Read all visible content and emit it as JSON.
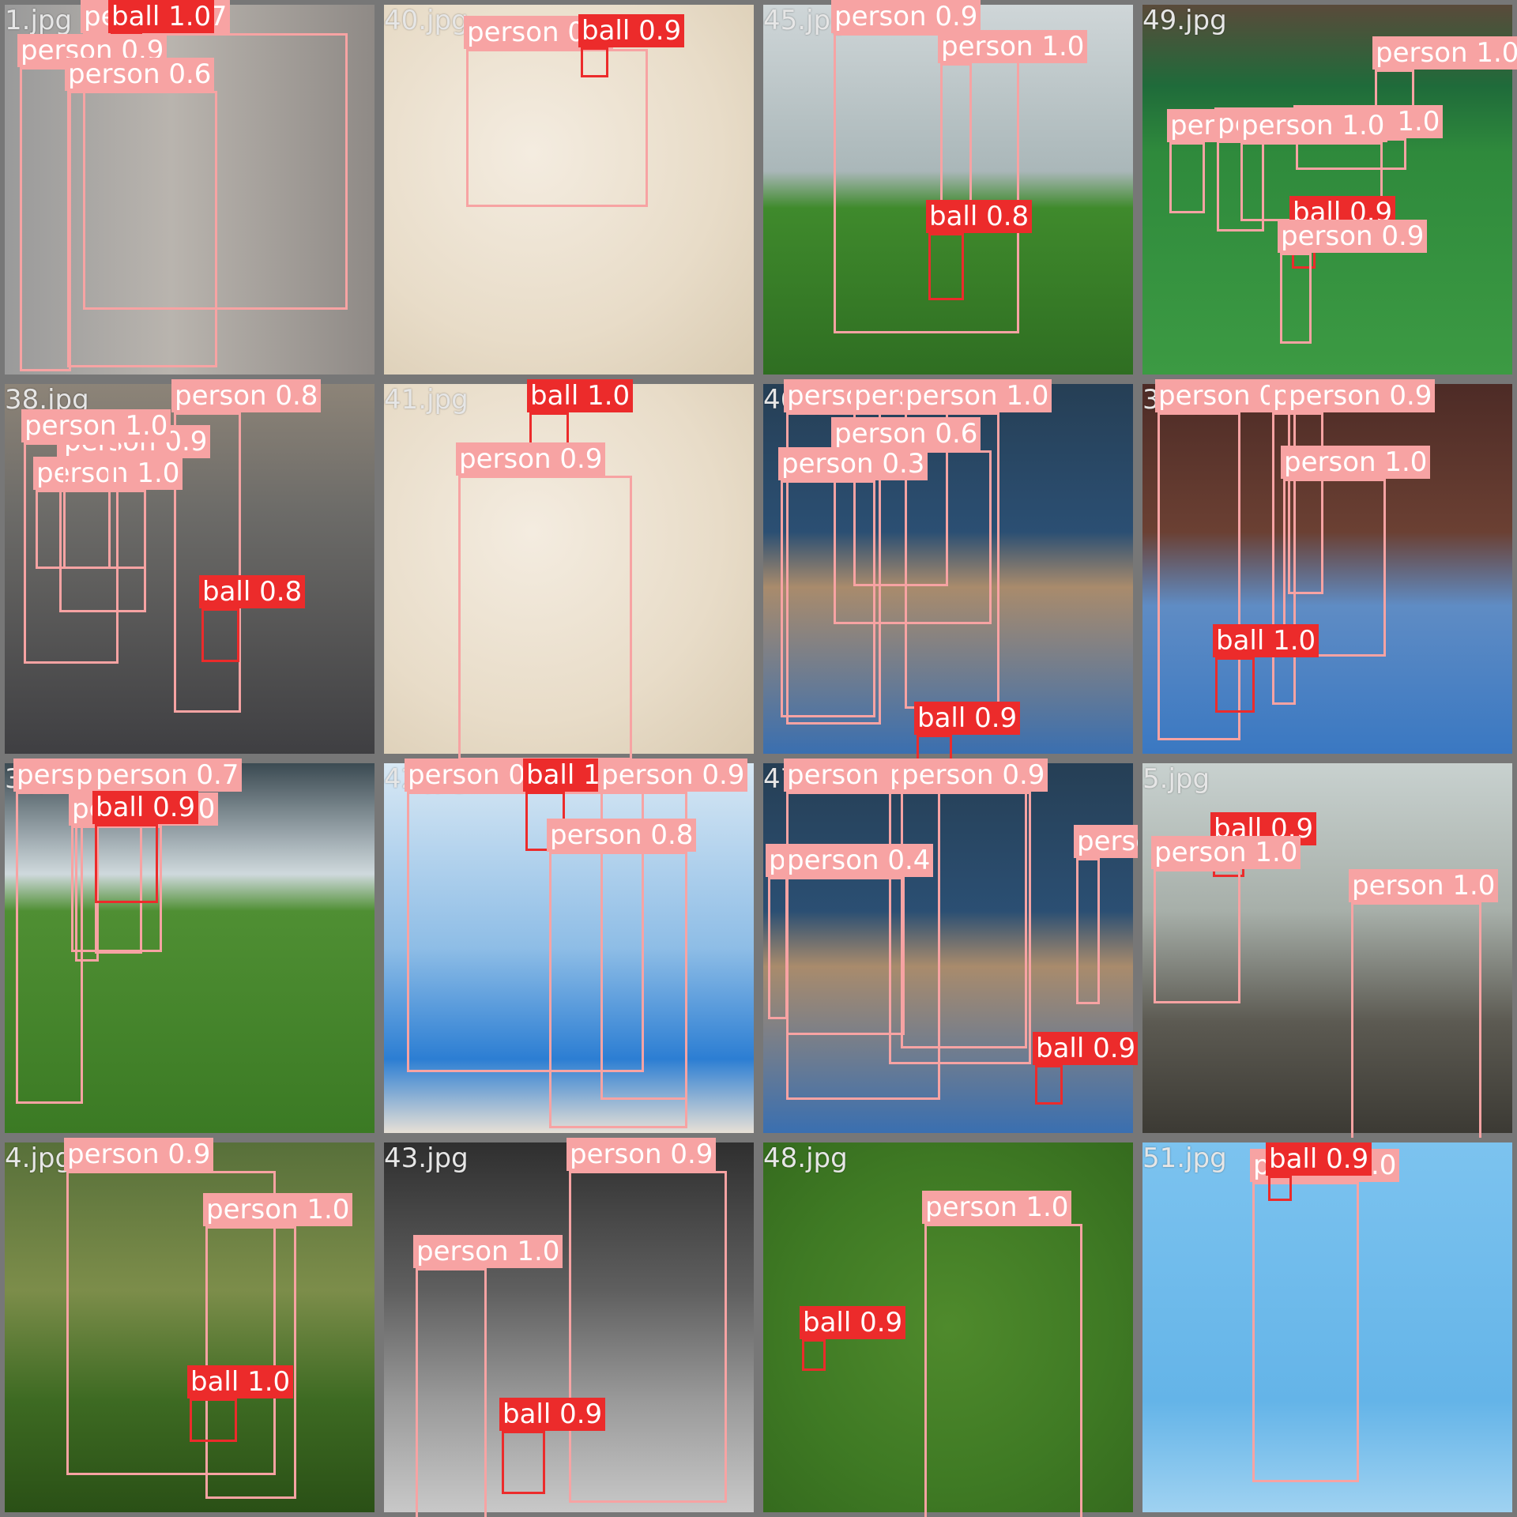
{
  "colors": {
    "person": "#f7a3a3",
    "ball": "#ec2b2b",
    "divider": "#7a7a7a"
  },
  "tiles": [
    {
      "file": "1.jpg",
      "scene": "indoor-gray",
      "detections": [
        {
          "cls": "person",
          "label": "person 0.7"
        },
        {
          "cls": "ball",
          "label": "ball 1.0"
        },
        {
          "cls": "person",
          "label": "person 0.9"
        },
        {
          "cls": "person",
          "label": "person 0.6"
        }
      ]
    },
    {
      "file": "40.jpg",
      "scene": "sand",
      "detections": [
        {
          "cls": "person",
          "label": "person 0.9"
        },
        {
          "cls": "ball",
          "label": "ball 0.9"
        }
      ]
    },
    {
      "file": "45.jpg",
      "scene": "grass-goal",
      "detections": [
        {
          "cls": "person",
          "label": "person 0.9"
        },
        {
          "cls": "person",
          "label": "person 1.0"
        },
        {
          "cls": "ball",
          "label": "ball 0.8"
        }
      ]
    },
    {
      "file": "49.jpg",
      "scene": "stadium",
      "detections": [
        {
          "cls": "person",
          "label": "person 1.0"
        },
        {
          "cls": "person",
          "label": "person 1.0"
        },
        {
          "cls": "person",
          "label": "person 0.6"
        },
        {
          "cls": "person",
          "label": "person 1.0"
        },
        {
          "cls": "person",
          "label": "person 1.0"
        },
        {
          "cls": "ball",
          "label": "ball 0.9"
        },
        {
          "cls": "person",
          "label": "person 0.9"
        }
      ]
    },
    {
      "file": "38.jpg",
      "scene": "street",
      "detections": [
        {
          "cls": "person",
          "label": "person 0.8"
        },
        {
          "cls": "person",
          "label": "person 1.0"
        },
        {
          "cls": "person",
          "label": "person 1.0"
        },
        {
          "cls": "person",
          "label": "person 0.9"
        },
        {
          "cls": "person",
          "label": "person 1.0"
        },
        {
          "cls": "ball",
          "label": "ball 0.8"
        }
      ]
    },
    {
      "file": "41.jpg",
      "scene": "sand",
      "detections": [
        {
          "cls": "ball",
          "label": "ball 1.0"
        },
        {
          "cls": "person",
          "label": "person 0.9"
        }
      ]
    },
    {
      "file": "46.jpg",
      "scene": "futsal",
      "detections": [
        {
          "cls": "person",
          "label": "person 0.6"
        },
        {
          "cls": "person",
          "label": "person 0.6"
        },
        {
          "cls": "person",
          "label": "person 1.0"
        },
        {
          "cls": "person",
          "label": "person 0.6"
        },
        {
          "cls": "person",
          "label": "person 0.3"
        },
        {
          "cls": "ball",
          "label": "ball 0.9"
        }
      ]
    },
    {
      "file": "39.jpg",
      "scene": "futsal-crowd",
      "detections": [
        {
          "cls": "person",
          "label": "person 0.8"
        },
        {
          "cls": "person",
          "label": "person 0.9"
        },
        {
          "cls": "person",
          "label": "person 0.9"
        },
        {
          "cls": "person",
          "label": "person 1.0"
        },
        {
          "cls": "ball",
          "label": "ball 1.0"
        }
      ]
    },
    {
      "file": "3.jpg",
      "scene": "night-field",
      "detections": [
        {
          "cls": "person",
          "label": "person 0.9"
        },
        {
          "cls": "person",
          "label": "person 0.3"
        },
        {
          "cls": "person",
          "label": "person 0.7"
        },
        {
          "cls": "person",
          "label": "person 1.0"
        },
        {
          "cls": "ball",
          "label": "ball 0.9"
        }
      ]
    },
    {
      "file": "42.jpg",
      "scene": "beach-arena",
      "detections": [
        {
          "cls": "person",
          "label": "person 0.9"
        },
        {
          "cls": "ball",
          "label": "ball 1.0"
        },
        {
          "cls": "person",
          "label": "person 0.9"
        },
        {
          "cls": "person",
          "label": "person 0.8"
        }
      ]
    },
    {
      "file": "47.jpg",
      "scene": "futsal",
      "detections": [
        {
          "cls": "person",
          "label": "person 1.0"
        },
        {
          "cls": "person",
          "label": "person 0.7"
        },
        {
          "cls": "person",
          "label": "person 0.9"
        },
        {
          "cls": "person",
          "label": "person 0.4"
        },
        {
          "cls": "person",
          "label": "person 0.4"
        },
        {
          "cls": "person",
          "label": "person 0.5"
        },
        {
          "cls": "ball",
          "label": "ball 0.9"
        }
      ]
    },
    {
      "file": "5.jpg",
      "scene": "flooded",
      "detections": [
        {
          "cls": "ball",
          "label": "ball 0.9"
        },
        {
          "cls": "person",
          "label": "person 1.0"
        },
        {
          "cls": "person",
          "label": "person 1.0"
        }
      ]
    },
    {
      "file": "4.jpg",
      "scene": "park",
      "detections": [
        {
          "cls": "person",
          "label": "person 0.9"
        },
        {
          "cls": "person",
          "label": "person 1.0"
        },
        {
          "cls": "ball",
          "label": "ball 1.0"
        }
      ]
    },
    {
      "file": "43.jpg",
      "scene": "bw-stadium",
      "detections": [
        {
          "cls": "person",
          "label": "person 0.9"
        },
        {
          "cls": "person",
          "label": "person 1.0"
        },
        {
          "cls": "ball",
          "label": "ball 0.9"
        }
      ]
    },
    {
      "file": "48.jpg",
      "scene": "grass",
      "detections": [
        {
          "cls": "person",
          "label": "person 1.0"
        },
        {
          "cls": "ball",
          "label": "ball 0.9"
        }
      ]
    },
    {
      "file": "51.jpg",
      "scene": "sky-court",
      "detections": [
        {
          "cls": "person",
          "label": "person 1.0"
        },
        {
          "cls": "ball",
          "label": "ball 0.9"
        }
      ]
    }
  ]
}
